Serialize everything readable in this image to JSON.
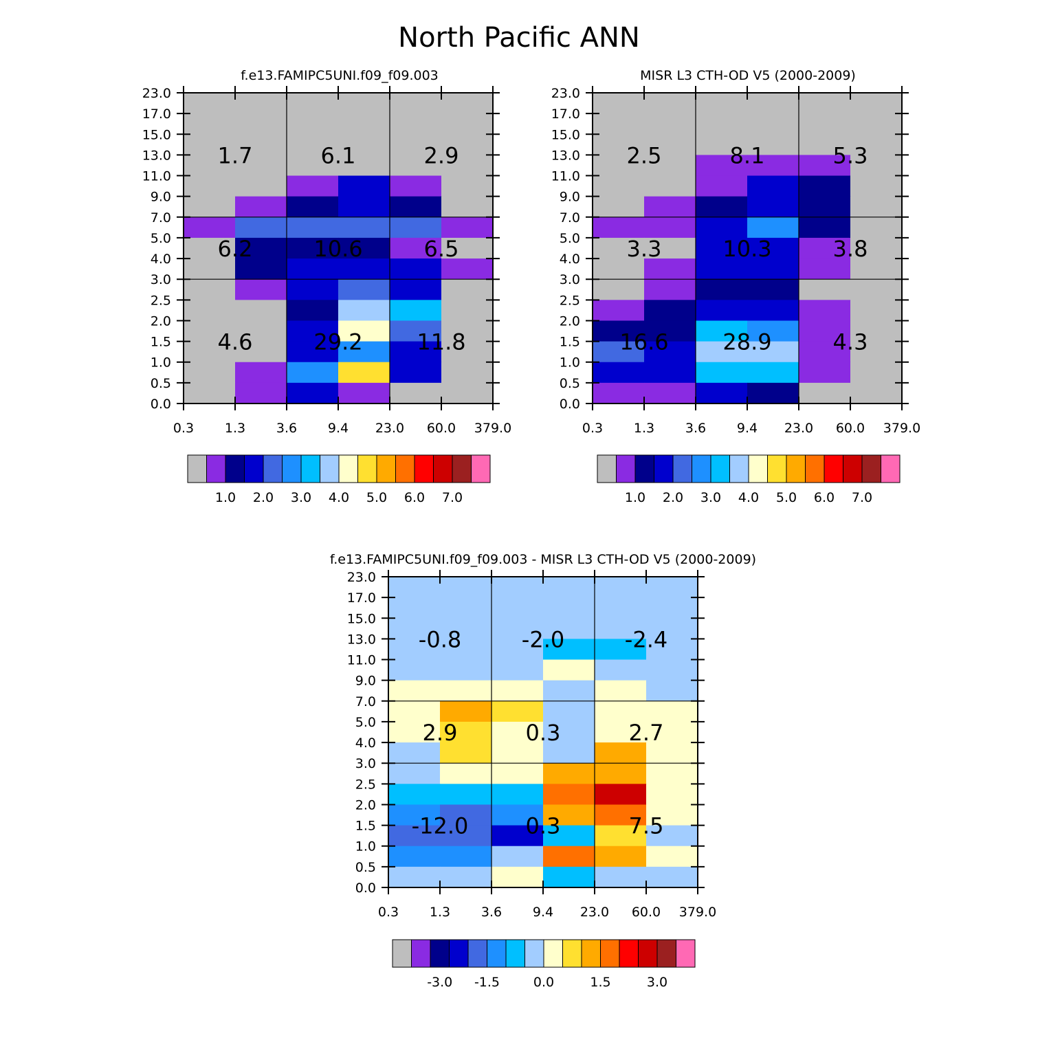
{
  "title": "North Pacific ANN",
  "colors": {
    "palette": [
      "#bebebe",
      "#8a2be2",
      "#00008b",
      "#0000cd",
      "#4169e1",
      "#1e90ff",
      "#00bfff",
      "#a2cdff",
      "#ffffcc",
      "#ffe030",
      "#ffaa00",
      "#ff7000",
      "#ff0000",
      "#cd0000",
      "#9b2020",
      "#ff69b4"
    ],
    "frame": "#000000",
    "background": "#ffffff"
  },
  "chart_data": [
    {
      "type": "heatmap",
      "title": "f.e13.FAMIPC5UNI.f09_f09.003",
      "xticks": [
        "0.3",
        "1.3",
        "3.6",
        "9.4",
        "23.0",
        "60.0",
        "379.0"
      ],
      "yticks": [
        "0.0",
        "0.5",
        "1.0",
        "1.5",
        "2.0",
        "2.5",
        "3.0",
        "4.0",
        "5.0",
        "7.0",
        "9.0",
        "11.0",
        "13.0",
        "15.0",
        "17.0",
        "23.0"
      ],
      "cells_note": "rows from top (23.0-17.0) to bottom (0.5-0.0); values are colour-bin indices of the colorbar palette",
      "cells": [
        [
          0,
          0,
          0,
          0,
          0,
          0
        ],
        [
          0,
          0,
          0,
          0,
          0,
          0
        ],
        [
          0,
          0,
          0,
          0,
          0,
          0
        ],
        [
          0,
          0,
          0,
          0,
          0,
          0
        ],
        [
          0,
          0,
          1,
          3,
          1,
          0
        ],
        [
          0,
          1,
          2,
          3,
          2,
          0
        ],
        [
          1,
          4,
          4,
          4,
          4,
          1
        ],
        [
          0,
          2,
          2,
          2,
          1,
          0
        ],
        [
          0,
          2,
          3,
          3,
          3,
          1
        ],
        [
          0,
          1,
          3,
          4,
          3,
          0
        ],
        [
          0,
          0,
          2,
          7,
          6,
          0
        ],
        [
          0,
          0,
          3,
          8,
          4,
          0
        ],
        [
          0,
          0,
          3,
          5,
          3,
          0
        ],
        [
          0,
          1,
          5,
          9,
          3,
          0
        ],
        [
          0,
          1,
          3,
          1,
          0,
          0
        ]
      ],
      "sector_labels": [
        [
          "1.7",
          "6.1",
          "2.9"
        ],
        [
          "6.2",
          "10.6",
          "6.5"
        ],
        [
          "4.6",
          "29.2",
          "11.8"
        ]
      ],
      "colorbar": {
        "labels": [
          "1.0",
          "2.0",
          "3.0",
          "4.0",
          "5.0",
          "6.0",
          "7.0"
        ]
      }
    },
    {
      "type": "heatmap",
      "title": "MISR L3 CTH-OD V5 (2000-2009)",
      "xticks": [
        "0.3",
        "1.3",
        "3.6",
        "9.4",
        "23.0",
        "60.0",
        "379.0"
      ],
      "yticks": [
        "0.0",
        "0.5",
        "1.0",
        "1.5",
        "2.0",
        "2.5",
        "3.0",
        "4.0",
        "5.0",
        "7.0",
        "9.0",
        "11.0",
        "13.0",
        "15.0",
        "17.0",
        "23.0"
      ],
      "cells": [
        [
          0,
          0,
          0,
          0,
          0,
          0
        ],
        [
          0,
          0,
          0,
          0,
          0,
          0
        ],
        [
          0,
          0,
          0,
          0,
          0,
          0
        ],
        [
          0,
          0,
          1,
          1,
          1,
          0
        ],
        [
          0,
          0,
          1,
          3,
          2,
          0
        ],
        [
          0,
          1,
          2,
          3,
          2,
          0
        ],
        [
          1,
          1,
          3,
          5,
          2,
          0
        ],
        [
          0,
          0,
          3,
          3,
          1,
          0
        ],
        [
          0,
          1,
          3,
          3,
          1,
          0
        ],
        [
          0,
          1,
          2,
          2,
          0,
          0
        ],
        [
          1,
          2,
          3,
          3,
          1,
          0
        ],
        [
          2,
          2,
          6,
          5,
          1,
          0
        ],
        [
          4,
          3,
          7,
          7,
          1,
          0
        ],
        [
          3,
          3,
          6,
          6,
          1,
          0
        ],
        [
          1,
          1,
          3,
          2,
          0,
          0
        ]
      ],
      "sector_labels": [
        [
          "2.5",
          "8.1",
          "5.3"
        ],
        [
          "3.3",
          "10.3",
          "3.8"
        ],
        [
          "16.6",
          "28.9",
          "4.3"
        ]
      ],
      "colorbar": {
        "labels": [
          "1.0",
          "2.0",
          "3.0",
          "4.0",
          "5.0",
          "6.0",
          "7.0"
        ]
      }
    },
    {
      "type": "heatmap",
      "title": "f.e13.FAMIPC5UNI.f09_f09.003 - MISR L3 CTH-OD V5 (2000-2009)",
      "xticks": [
        "0.3",
        "1.3",
        "3.6",
        "9.4",
        "23.0",
        "60.0",
        "379.0"
      ],
      "yticks": [
        "0.0",
        "0.5",
        "1.0",
        "1.5",
        "2.0",
        "2.5",
        "3.0",
        "4.0",
        "5.0",
        "7.0",
        "9.0",
        "11.0",
        "13.0",
        "15.0",
        "17.0",
        "23.0"
      ],
      "cells": [
        [
          7,
          7,
          7,
          7,
          7,
          7
        ],
        [
          7,
          7,
          7,
          7,
          7,
          7
        ],
        [
          7,
          7,
          7,
          7,
          7,
          7
        ],
        [
          7,
          7,
          7,
          6,
          6,
          7
        ],
        [
          7,
          7,
          7,
          8,
          7,
          7
        ],
        [
          8,
          8,
          8,
          7,
          8,
          7
        ],
        [
          8,
          10,
          9,
          7,
          8,
          8
        ],
        [
          8,
          9,
          8,
          7,
          8,
          8
        ],
        [
          7,
          9,
          8,
          7,
          10,
          8
        ],
        [
          7,
          8,
          8,
          10,
          10,
          8
        ],
        [
          6,
          6,
          6,
          11,
          13,
          8
        ],
        [
          5,
          4,
          5,
          10,
          11,
          8
        ],
        [
          4,
          4,
          3,
          6,
          9,
          7
        ],
        [
          5,
          5,
          7,
          11,
          10,
          8
        ],
        [
          7,
          7,
          8,
          6,
          7,
          7
        ]
      ],
      "sector_labels": [
        [
          "-0.8",
          "-2.0",
          "-2.4"
        ],
        [
          "2.9",
          "0.3",
          "2.7"
        ],
        [
          "-12.0",
          "0.3",
          "7.5"
        ]
      ],
      "colorbar": {
        "labels": [
          "-3.0",
          "-1.5",
          "0.0",
          "1.5",
          "3.0"
        ]
      }
    }
  ]
}
